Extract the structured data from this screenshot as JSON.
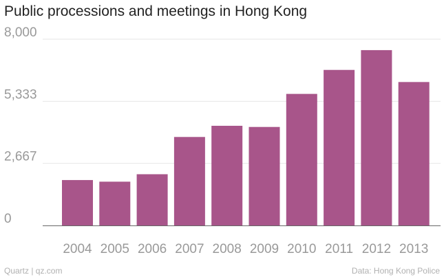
{
  "chart_data": {
    "type": "bar",
    "title": "Public processions and meetings in Hong Kong",
    "categories": [
      "2004",
      "2005",
      "2006",
      "2007",
      "2008",
      "2009",
      "2010",
      "2011",
      "2012",
      "2013"
    ],
    "values": [
      1950,
      1880,
      2200,
      3800,
      4280,
      4230,
      5650,
      6680,
      7530,
      6160
    ],
    "ylim": [
      0,
      8000
    ],
    "yticks": [
      0,
      2667,
      5333,
      8000
    ],
    "ytick_labels": [
      "0",
      "2,667",
      "5,333",
      "8,000"
    ],
    "xlabel": "",
    "ylabel": "",
    "grid": true,
    "bar_color": "#a8558a"
  },
  "footer": {
    "source_left": "Quartz | qz.com",
    "source_right": "Data: Hong Kong Police"
  },
  "colors": {
    "bar": "#a8558a",
    "grid": "#e6e6e6",
    "baseline": "#666666"
  }
}
